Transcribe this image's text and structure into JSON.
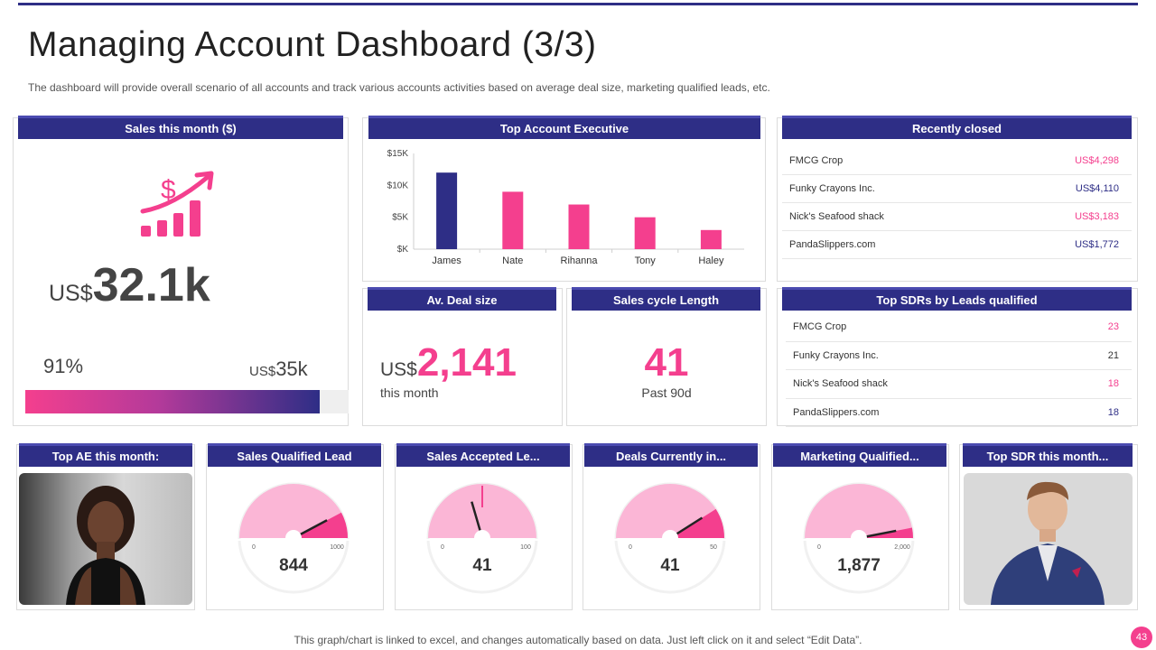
{
  "page": {
    "title": "Managing Account Dashboard (3/3)",
    "subtitle": "The dashboard  will provide  overall  scenario of all accounts and track various  accounts activities based on average  deal size, marketing qualified leads, etc.",
    "footer": "This graph/chart is linked to excel,  and changes automatically based on data. Just left click on it and select “Edit Data”.",
    "page_number": "43"
  },
  "colors": {
    "navy": "#2e2e86",
    "pink": "#f43f8e",
    "light_pink": "#fbb6d6"
  },
  "sales_month": {
    "header": "Sales this month ($)",
    "icon": "dollar-growth-chart-icon",
    "currency_prefix": "US$",
    "amount": "32.1k",
    "percent_label": "91%",
    "progress": 0.91,
    "target_prefix": "US$",
    "target": "35k"
  },
  "top_account_exec": {
    "header": "Top Account Executive"
  },
  "chart_data": {
    "type": "bar",
    "title": "Top Account Executive",
    "categories": [
      "James",
      "Nate",
      "Rihanna",
      "Tony",
      "Haley"
    ],
    "values": [
      12,
      9,
      7,
      5,
      3
    ],
    "colors": [
      "#2e2e86",
      "#f43f8e",
      "#f43f8e",
      "#f43f8e",
      "#f43f8e"
    ],
    "ylim": [
      0,
      15
    ],
    "yticks": [
      0,
      5,
      10,
      15
    ],
    "ytick_labels": [
      "$K",
      "$5K",
      "$10K",
      "$15K"
    ],
    "xlabel": "",
    "ylabel": ""
  },
  "recently_closed": {
    "header": "Recently closed",
    "rows": [
      {
        "name": "FMCG  Crop",
        "value": "US$4,298",
        "color": "#f43f8e"
      },
      {
        "name": "Funky Crayons Inc.",
        "value": "US$4,110",
        "color": "#2e2e86"
      },
      {
        "name": "Nick's Seafood shack",
        "value": "US$3,183",
        "color": "#f43f8e"
      },
      {
        "name": "PandaSlippers.com",
        "value": "US$1,772",
        "color": "#2e2e86"
      }
    ]
  },
  "avg_deal": {
    "header": "Av. Deal size",
    "prefix": "US$",
    "value": "2,141",
    "sub": "this month"
  },
  "sales_cycle": {
    "header": "Sales cycle Length",
    "value": "41",
    "sub": "Past 90d"
  },
  "top_sdrs": {
    "header": "Top SDRs by Leads qualified",
    "rows": [
      {
        "name": "FMCG  Crop",
        "value": "23",
        "color": "#f43f8e"
      },
      {
        "name": "Funky Crayons Inc.",
        "value": "21",
        "color": "#333333"
      },
      {
        "name": "Nick's Seafood shack",
        "value": "18",
        "color": "#f43f8e"
      },
      {
        "name": "PandaSlippers.com",
        "value": "18",
        "color": "#2e2e86"
      }
    ]
  },
  "top_ae": {
    "header": "Top AE this month:",
    "photo": "person-photo-icon"
  },
  "top_sdr": {
    "header": "Top SDR this month...",
    "photo": "person-photo-icon"
  },
  "gauges": [
    {
      "header": "Sales Qualified Lead",
      "min": "0",
      "max": "1000",
      "max_num": 1000,
      "value_num": 844,
      "value": "844"
    },
    {
      "header": "Sales Accepted  Le...",
      "min": "0",
      "max": "100",
      "max_num": 100,
      "value_num": 41,
      "value": "41",
      "target_num": 50
    },
    {
      "header": "Deals Currently in...",
      "min": "0",
      "max": "50",
      "max_num": 50,
      "value_num": 41,
      "value": "41"
    },
    {
      "header": "Marketing Qualified...",
      "min": "0",
      "max": "2,000",
      "max_num": 2000,
      "value_num": 1877,
      "value": "1,877"
    }
  ]
}
